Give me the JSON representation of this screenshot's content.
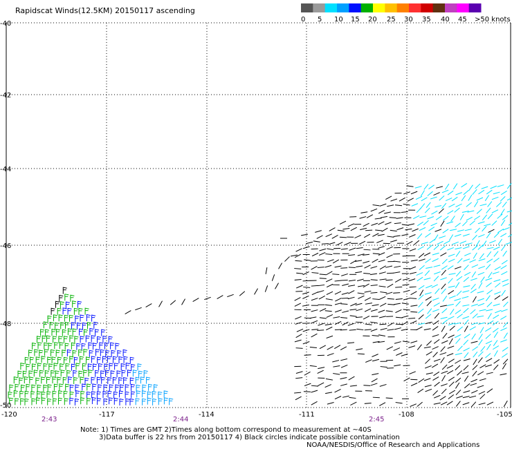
{
  "title": "Rapidscat Winds(12.5KM) 20150117 ascending",
  "legend": {
    "labels": [
      "0",
      "5",
      "10",
      "15",
      "20",
      "25",
      "30",
      "35",
      "40",
      "45",
      ">50 knots"
    ],
    "colors": [
      "#555555",
      "#9a9a9a",
      "#00e0ff",
      "#00a0ff",
      "#0010ff",
      "#00b000",
      "#ffff00",
      "#ffc000",
      "#ff8000",
      "#ff3030",
      "#d00000",
      "#603010",
      "#c040c0",
      "#ff00ff",
      "#5a00b0"
    ]
  },
  "axes": {
    "x_ticks": [
      "-120",
      "-117",
      "-114",
      "-111",
      "-108",
      "-105"
    ],
    "y_ticks": [
      "-40",
      "-42",
      "-44",
      "-46",
      "-48",
      "-50"
    ],
    "time_labels": [
      "2:43",
      "2:44",
      "2:45"
    ]
  },
  "notes": {
    "line1": "Note: 1) Times are GMT 2)Times along bottom correspond to measurement at ~40S",
    "line2": "3)Data buffer is 22 hrs from 20150117 4) Black circles indicate possible contamination",
    "credit": "NOAA/NESDIS/Office of Research and Applications"
  },
  "wind_colors": {
    "calm": "#000000",
    "light": "#00e0ff",
    "moderate": "#0010ff",
    "blue": "#00a0ff",
    "fresh": "#00b000"
  }
}
